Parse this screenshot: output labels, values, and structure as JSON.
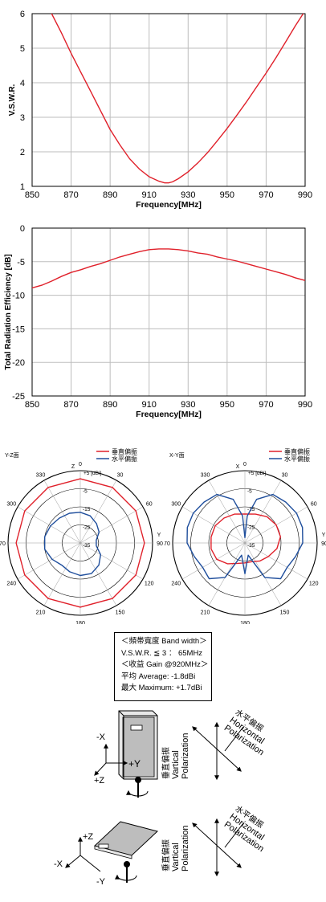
{
  "chart_data": [
    {
      "type": "line",
      "xlabel": "Frequency[MHz]",
      "ylabel": "V.S.W.R.",
      "xlim": [
        850,
        990
      ],
      "ylim": [
        1,
        6
      ],
      "xticks": [
        "850",
        "870",
        "890",
        "910",
        "930",
        "950",
        "970",
        "990"
      ],
      "yticks": [
        "1",
        "2",
        "3",
        "4",
        "5",
        "6"
      ],
      "grid": true,
      "series": [
        {
          "color": "#e0202a",
          "x": [
            860,
            865,
            870,
            875,
            880,
            885,
            890,
            895,
            900,
            905,
            910,
            915,
            918,
            920,
            922,
            925,
            930,
            935,
            940,
            945,
            950,
            955,
            960,
            965,
            970,
            975,
            980,
            985,
            989
          ],
          "y": [
            6.0,
            5.45,
            4.85,
            4.3,
            3.75,
            3.2,
            2.65,
            2.2,
            1.8,
            1.5,
            1.28,
            1.15,
            1.1,
            1.1,
            1.13,
            1.22,
            1.42,
            1.68,
            1.98,
            2.32,
            2.68,
            3.06,
            3.45,
            3.87,
            4.28,
            4.72,
            5.18,
            5.65,
            6.0
          ]
        }
      ]
    },
    {
      "type": "line",
      "xlabel": "Frequency[MHz]",
      "ylabel": "Total Radiation Efficiency [dB]",
      "xlim": [
        850,
        990
      ],
      "ylim": [
        -25,
        0
      ],
      "xticks": [
        "850",
        "870",
        "890",
        "910",
        "930",
        "950",
        "970",
        "990"
      ],
      "yticks": [
        "0",
        "-5",
        "-10",
        "-15",
        "-20",
        "-25"
      ],
      "grid": true,
      "series": [
        {
          "color": "#e0202a",
          "x": [
            850,
            855,
            860,
            865,
            870,
            875,
            880,
            885,
            890,
            895,
            900,
            905,
            910,
            915,
            920,
            925,
            930,
            935,
            940,
            945,
            950,
            955,
            960,
            965,
            970,
            975,
            980,
            985,
            990
          ],
          "y": [
            -8.9,
            -8.5,
            -7.9,
            -7.2,
            -6.6,
            -6.2,
            -5.7,
            -5.3,
            -4.8,
            -4.3,
            -3.9,
            -3.5,
            -3.2,
            -3.1,
            -3.1,
            -3.2,
            -3.4,
            -3.7,
            -3.9,
            -4.3,
            -4.6,
            -4.9,
            -5.3,
            -5.7,
            -6.1,
            -6.5,
            -6.9,
            -7.4,
            -7.8
          ]
        }
      ]
    },
    {
      "type": "polar",
      "title": "Y-Z面",
      "axis_labels": [
        "Z",
        "Y"
      ],
      "rlim": [
        -35,
        5
      ],
      "unit_label": "+5 [dBi]",
      "ring_labels": [
        "+5 [dBi]",
        "-5",
        "-15",
        "-25",
        "-35"
      ],
      "angle_labels": [
        "0",
        "30",
        "60",
        "90",
        "120",
        "150",
        "180",
        "210",
        "240",
        "270",
        "300",
        "330"
      ],
      "legend": [
        "垂直偏振",
        "水平偏振"
      ],
      "series": [
        {
          "name": "垂直偏振",
          "color": "#e0202a",
          "angle": [
            0,
            30,
            60,
            90,
            120,
            150,
            180,
            210,
            240,
            270,
            300,
            330
          ],
          "gain": [
            0.5,
            0.5,
            0.5,
            0.5,
            0.5,
            0.5,
            0.5,
            0.5,
            0.5,
            0.5,
            0.5,
            0.5
          ]
        },
        {
          "name": "水平偏振",
          "color": "#1f4e9c",
          "angle": [
            0,
            20,
            40,
            60,
            80,
            100,
            120,
            140,
            160,
            180,
            200,
            220,
            240,
            260,
            280,
            300,
            320,
            340
          ],
          "gain": [
            -18,
            -19,
            -21,
            -23,
            -26,
            -26,
            -22,
            -19,
            -17,
            -17,
            -18,
            -19,
            -17,
            -15,
            -15,
            -16,
            -17,
            -17.5
          ]
        }
      ]
    },
    {
      "type": "polar",
      "title": "X-Y面",
      "axis_labels": [
        "X",
        "Y"
      ],
      "rlim": [
        -35,
        5
      ],
      "unit_label": "+5 [dBi]",
      "ring_labels": [
        "+5 [dBi]",
        "-5",
        "-15",
        "-25",
        "-35"
      ],
      "angle_labels": [
        "0",
        "30",
        "60",
        "90",
        "120",
        "150",
        "180",
        "210",
        "240",
        "270",
        "300",
        "330"
      ],
      "legend": [
        "垂直偏振",
        "水平偏振"
      ],
      "series": [
        {
          "name": "垂直偏振",
          "color": "#e0202a",
          "angle": [
            0,
            20,
            40,
            60,
            80,
            100,
            120,
            140,
            160,
            180,
            200,
            220,
            240,
            260,
            280,
            300,
            320,
            340
          ],
          "gain": [
            -19,
            -18,
            -16,
            -15,
            -15,
            -17,
            -20,
            -22,
            -24,
            -24,
            -23,
            -20,
            -17,
            -16,
            -16,
            -16,
            -17,
            -18
          ]
        },
        {
          "name": "水平偏振",
          "color": "#1f4e9c",
          "angle": [
            0,
            5,
            15,
            30,
            45,
            60,
            75,
            90,
            105,
            120,
            135,
            150,
            165,
            180,
            195,
            210,
            225,
            240,
            255,
            270,
            285,
            300,
            315,
            330,
            345,
            355
          ],
          "gain": [
            -32,
            -20,
            -10,
            -4,
            -3,
            -2,
            -2,
            -3,
            -6,
            -8,
            -7,
            -13,
            -28,
            -18,
            -28,
            -13,
            -7,
            -8,
            -6,
            -3,
            -2,
            -2,
            -3,
            -4,
            -10,
            -20
          ]
        }
      ]
    }
  ],
  "spec": {
    "line1": "＜頻帯寬度 Band width＞",
    "line2": "V.S.W.R. ≦ 3 ： 65MHz",
    "line3": "＜收益 Gain @920MHz＞",
    "line4": "平均 Average: -1.8dBi",
    "line5": "最大 Maximum: +1.7dBi"
  },
  "diagram1": {
    "minus_x": "-X",
    "plus_y": "+Y",
    "plus_z": "+Z",
    "vertical_label": "垂直偏振",
    "vertical_en1": "Vartical",
    "vertical_en2": "Polarization",
    "horizontal_label": "水平偏振",
    "horizontal_en1": "Horizontal",
    "horizontal_en2": "Polarization"
  },
  "diagram2": {
    "plus_z": "+Z",
    "minus_x": "-X",
    "minus_y": "-Y",
    "vertical_label": "垂直偏振",
    "vertical_en1": "Vartical",
    "vertical_en2": "Polarization",
    "horizontal_label": "水平偏振",
    "horizontal_en1": "Horizontal",
    "horizontal_en2": "Polarization"
  }
}
